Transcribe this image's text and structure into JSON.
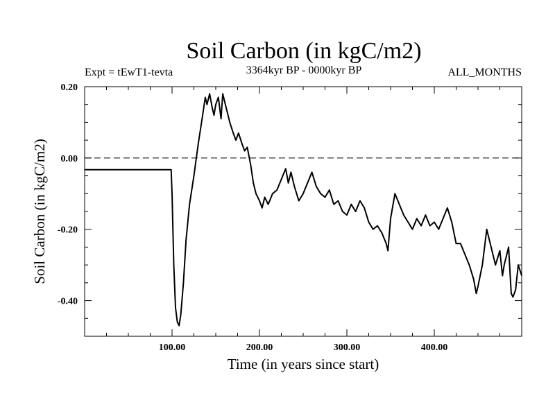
{
  "chart_data": {
    "type": "line",
    "title": "Soil Carbon (in kgC/m2)",
    "subtitle_left": "Expt = tEwT1-tevta",
    "subtitle_center": "3364kyr BP - 0000kyr BP",
    "subtitle_right": "ALL_MONTHS",
    "xlabel": "Time (in years since start)",
    "ylabel": "Soil Carbon (in kgC/m2)",
    "xlim": [
      0,
      500
    ],
    "ylim": [
      -0.5,
      0.2
    ],
    "x_ticks": [
      {
        "value": 100,
        "label": "100.00"
      },
      {
        "value": 200,
        "label": "200.00"
      },
      {
        "value": 300,
        "label": "300.00"
      },
      {
        "value": 400,
        "label": "400.00"
      }
    ],
    "y_ticks": [
      {
        "value": 0.2,
        "label": "0.20"
      },
      {
        "value": 0.0,
        "label": "0.00"
      },
      {
        "value": -0.2,
        "label": "-0.20"
      },
      {
        "value": -0.4,
        "label": "-0.40"
      }
    ],
    "reference_line": {
      "y": 0.0,
      "style": "dashed"
    },
    "grid": false,
    "series": [
      {
        "name": "Soil Carbon",
        "x": [
          0,
          99,
          100,
          102,
          104,
          106,
          108,
          110,
          113,
          116,
          120,
          125,
          130,
          135,
          138,
          140,
          143,
          146,
          148,
          150,
          153,
          156,
          158,
          160,
          163,
          166,
          170,
          173,
          176,
          180,
          183,
          186,
          190,
          193,
          196,
          200,
          203,
          206,
          210,
          215,
          220,
          225,
          230,
          233,
          236,
          240,
          245,
          250,
          255,
          260,
          265,
          270,
          275,
          280,
          285,
          290,
          295,
          300,
          305,
          310,
          315,
          320,
          325,
          330,
          335,
          340,
          345,
          347,
          350,
          355,
          360,
          365,
          370,
          375,
          380,
          385,
          390,
          395,
          400,
          405,
          410,
          415,
          420,
          425,
          430,
          435,
          440,
          445,
          448,
          450,
          455,
          460,
          465,
          470,
          475,
          478,
          480,
          485,
          488,
          490,
          493,
          496,
          500
        ],
        "values": [
          -0.033,
          -0.033,
          -0.1,
          -0.3,
          -0.42,
          -0.46,
          -0.47,
          -0.44,
          -0.35,
          -0.23,
          -0.13,
          -0.05,
          0.04,
          0.12,
          0.17,
          0.15,
          0.18,
          0.14,
          0.12,
          0.15,
          0.17,
          0.11,
          0.18,
          0.16,
          0.13,
          0.1,
          0.07,
          0.05,
          0.07,
          0.04,
          0.02,
          0.03,
          -0.02,
          -0.07,
          -0.1,
          -0.12,
          -0.14,
          -0.11,
          -0.13,
          -0.1,
          -0.09,
          -0.06,
          -0.03,
          -0.07,
          -0.04,
          -0.08,
          -0.12,
          -0.1,
          -0.07,
          -0.04,
          -0.08,
          -0.1,
          -0.11,
          -0.09,
          -0.13,
          -0.12,
          -0.15,
          -0.16,
          -0.13,
          -0.15,
          -0.12,
          -0.14,
          -0.18,
          -0.2,
          -0.19,
          -0.21,
          -0.24,
          -0.26,
          -0.17,
          -0.1,
          -0.13,
          -0.16,
          -0.18,
          -0.2,
          -0.17,
          -0.19,
          -0.16,
          -0.19,
          -0.18,
          -0.2,
          -0.17,
          -0.14,
          -0.18,
          -0.24,
          -0.24,
          -0.27,
          -0.3,
          -0.34,
          -0.38,
          -0.36,
          -0.3,
          -0.2,
          -0.25,
          -0.3,
          -0.26,
          -0.33,
          -0.3,
          -0.25,
          -0.38,
          -0.39,
          -0.37,
          -0.3,
          -0.33
        ]
      }
    ]
  }
}
